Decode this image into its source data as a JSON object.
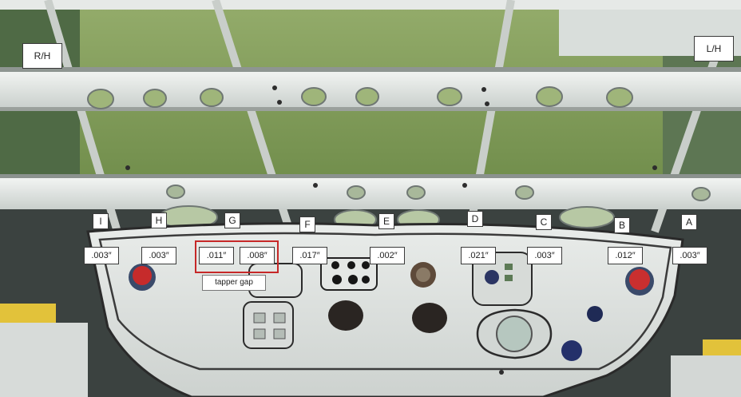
{
  "side_labels": {
    "right": "R/H",
    "left": "L/H"
  },
  "stations": [
    "I",
    "H",
    "G",
    "F",
    "E",
    "D",
    "C",
    "B",
    "A"
  ],
  "gaps": [
    ".003″",
    ".003″",
    ".011″",
    ".008″",
    ".017″",
    ".002″",
    ".021″",
    ".003″",
    ".012″",
    ".003″"
  ],
  "annotation": "tapper gap",
  "colors": {
    "highlight": "#c62828",
    "primer_green": "#7d9a55",
    "structure_white": "#e8ebe8"
  }
}
